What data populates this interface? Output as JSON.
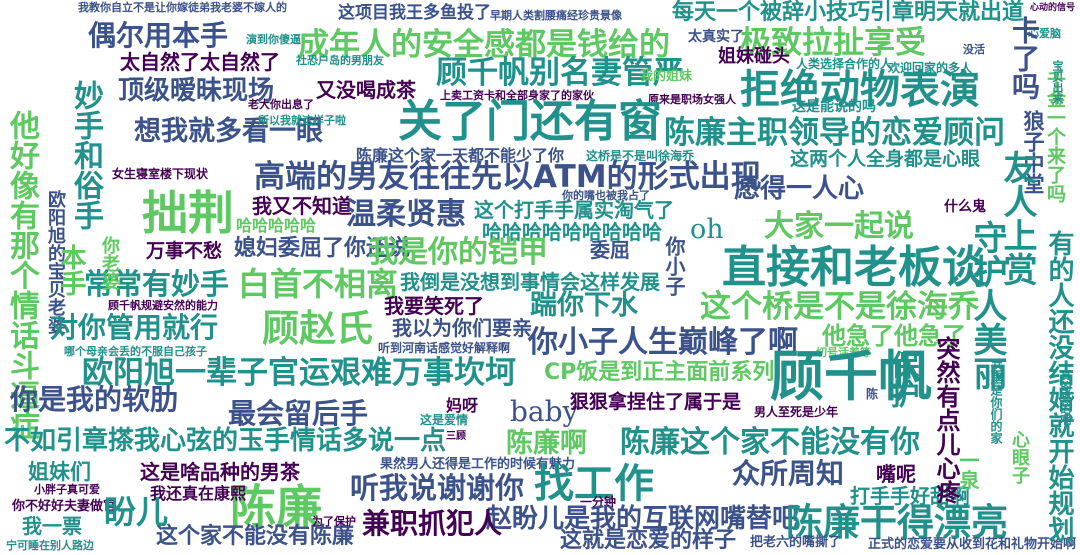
{
  "colors": {
    "background": "#ffffff",
    "palette": [
      "#440154",
      "#3b528b",
      "#21918c",
      "#5ec962",
      "#fde725"
    ]
  },
  "words": [
    {
      "id": "w01",
      "text": "我教你自立不是让你嫁徒弟我老婆不嫁人的",
      "color": "#3b528b"
    },
    {
      "id": "w02",
      "text": "这项目我王多鱼投了",
      "color": "#3b528b"
    },
    {
      "id": "w03",
      "text": "早期人类割腰痛经珍贵景像",
      "color": "#3b528b"
    },
    {
      "id": "w04",
      "text": "每天一个被辞小技巧引章明天就出道",
      "color": "#21918c"
    },
    {
      "id": "w05",
      "text": "心动的信号",
      "color": "#440154"
    },
    {
      "id": "w06",
      "text": "偶尔用本手",
      "color": "#3b528b"
    },
    {
      "id": "w07",
      "text": "演到你傻逼",
      "color": "#21918c"
    },
    {
      "id": "w08",
      "text": "成年人的安全感都是钱给的",
      "color": "#5ec962"
    },
    {
      "id": "w09",
      "text": "太真实了",
      "color": "#3b528b"
    },
    {
      "id": "w10",
      "text": "极致拉扯享受",
      "color": "#5ec962"
    },
    {
      "id": "w11",
      "text": "没活",
      "color": "#3b528b"
    },
    {
      "id": "w12",
      "text": "心爱脑",
      "color": "#21918c"
    },
    {
      "id": "w13",
      "text": "太自然了太自然了",
      "color": "#440154"
    },
    {
      "id": "w14",
      "text": "社恐户岛的男朋友",
      "color": "#21918c"
    },
    {
      "id": "w15",
      "text": "顾千帆别名妻管严",
      "color": "#21918c"
    },
    {
      "id": "w16",
      "text": "姐妹碰头",
      "color": "#440154"
    },
    {
      "id": "w17",
      "text": "人类选择合作的人",
      "color": "#21918c"
    },
    {
      "id": "w18",
      "text": "欢迎回家的多人",
      "color": "#21918c"
    },
    {
      "id": "w19",
      "text": "卡了吗",
      "color": "#3b528b"
    },
    {
      "id": "w20",
      "text": "顶级暧昧现场",
      "color": "#3b528b"
    },
    {
      "id": "w21",
      "text": "又没喝成茶",
      "color": "#440154"
    },
    {
      "id": "w22",
      "text": "我的姐妹",
      "color": "#5ec962"
    },
    {
      "id": "w23",
      "text": "拒绝动物表演",
      "color": "#21918c"
    },
    {
      "id": "w24",
      "text": "上卖工资卡和全部身家了的家伙",
      "color": "#440154"
    },
    {
      "id": "w25",
      "text": "老大你出息了",
      "color": "#440154"
    },
    {
      "id": "w26",
      "text": "原来是职场女强人",
      "color": "#440154"
    },
    {
      "id": "w27",
      "text": "这是能说的吗",
      "color": "#21918c"
    },
    {
      "id": "w28",
      "text": "想我就多看一眼",
      "color": "#3b528b"
    },
    {
      "id": "w29",
      "text": "关了门还有窗",
      "color": "#21918c"
    },
    {
      "id": "w30",
      "text": "陈廉主职领导的恋爱顾问",
      "color": "#21918c"
    },
    {
      "id": "w31",
      "text": "千金一个来了吗",
      "color": "#5ec962"
    },
    {
      "id": "w32",
      "text": "他好像有那个情话斗逼症",
      "color": "#5ec962"
    },
    {
      "id": "w33",
      "text": "所以我就这样子啦",
      "color": "#21918c"
    },
    {
      "id": "w34",
      "text": "陈廉这个家一天都不能少了你",
      "color": "#3b528b"
    },
    {
      "id": "w35",
      "text": "这桥是不是叫徐海乔",
      "color": "#21918c"
    },
    {
      "id": "w36",
      "text": "这两个人全身都是心眼",
      "color": "#21918c"
    },
    {
      "id": "w37",
      "text": "欧阳旭的宝贝老婆",
      "color": "#3b528b"
    },
    {
      "id": "w38",
      "text": "妙手和俗手",
      "color": "#21918c"
    },
    {
      "id": "w39",
      "text": "高端的男友往往先以ATM的形式出现",
      "color": "#3b528b"
    },
    {
      "id": "w40",
      "text": "愿得一人心",
      "color": "#3b528b"
    },
    {
      "id": "w41",
      "text": "狼子中堂",
      "color": "#3b528b"
    },
    {
      "id": "w42",
      "text": "女生寝室楼下现状",
      "color": "#440154"
    },
    {
      "id": "w43",
      "text": "拙荆",
      "color": "#5ec962"
    },
    {
      "id": "w44",
      "text": "我又不知道",
      "color": "#440154"
    },
    {
      "id": "w45",
      "text": "温柔贤惠",
      "color": "#3b528b"
    },
    {
      "id": "w46",
      "text": "这个打手手属实淘气了",
      "color": "#21918c"
    },
    {
      "id": "w47",
      "text": "你的嘴也被我占了",
      "color": "#3b528b"
    },
    {
      "id": "w48",
      "text": "什么鬼",
      "color": "#440154"
    },
    {
      "id": "w49",
      "text": "友人上赏",
      "color": "#21918c"
    },
    {
      "id": "w50",
      "text": "哈哈哈哈哈",
      "color": "#5ec962"
    },
    {
      "id": "w51",
      "text": "哈哈哈哈哈哈哈哈哈",
      "color": "#21918c"
    },
    {
      "id": "w52",
      "text": "oh",
      "color": "#21918c"
    },
    {
      "id": "w53",
      "text": "大家一起说",
      "color": "#5ec962"
    },
    {
      "id": "w54",
      "text": "万事不愁",
      "color": "#440154"
    },
    {
      "id": "w55",
      "text": "媳妇委屈了你还说",
      "color": "#3b528b"
    },
    {
      "id": "w56",
      "text": "我是你的铠甲",
      "color": "#5ec962"
    },
    {
      "id": "w57",
      "text": "委屈",
      "color": "#3b528b"
    },
    {
      "id": "w58",
      "text": "直接和老板谈",
      "color": "#21918c"
    },
    {
      "id": "w59",
      "text": "守护人美丽",
      "color": "#21918c"
    },
    {
      "id": "w60",
      "text": "常常有妙手",
      "color": "#21918c"
    },
    {
      "id": "w61",
      "text": "白首不相离",
      "color": "#5ec962"
    },
    {
      "id": "w62",
      "text": "我倒是没想到事情会这样发展",
      "color": "#21918c"
    },
    {
      "id": "w63",
      "text": "你小子",
      "color": "#3b528b"
    },
    {
      "id": "w64",
      "text": "顾千帆规避安然的能力",
      "color": "#440154"
    },
    {
      "id": "w65",
      "text": "这个桥是不是徐海乔",
      "color": "#5ec962"
    },
    {
      "id": "w66",
      "text": "对你管用就行",
      "color": "#21918c"
    },
    {
      "id": "w67",
      "text": "顾赵氏",
      "color": "#5ec962"
    },
    {
      "id": "w68",
      "text": "我要笑死了",
      "color": "#440154"
    },
    {
      "id": "w69",
      "text": "踹你下水",
      "color": "#21918c"
    },
    {
      "id": "w70",
      "text": "我以为你们要亲",
      "color": "#3b528b"
    },
    {
      "id": "w71",
      "text": "他急了他急了",
      "color": "#5ec962"
    },
    {
      "id": "w72",
      "text": "你小子人生巅峰了啊",
      "color": "#3b528b"
    },
    {
      "id": "w73",
      "text": "哪个母亲会丢的不服自己孩子",
      "color": "#21918c"
    },
    {
      "id": "w74",
      "text": "听到河南话感觉好解释啊",
      "color": "#3b528b"
    },
    {
      "id": "w75",
      "text": "切号活着等",
      "color": "#5ec962"
    },
    {
      "id": "w76",
      "text": "欧阳旭一辈子官运艰难万事坎坷",
      "color": "#21918c"
    },
    {
      "id": "w77",
      "text": "CP饭是到正主面前系列",
      "color": "#5ec962"
    },
    {
      "id": "w78",
      "text": "顾千帆",
      "color": "#21918c"
    },
    {
      "id": "w79",
      "text": "你是我的软肋",
      "color": "#3b528b"
    },
    {
      "id": "w80",
      "text": "最会留后手",
      "color": "#3b528b"
    },
    {
      "id": "w81",
      "text": "baby",
      "color": "#3b528b"
    },
    {
      "id": "w82",
      "text": "狠狠拿捏住了属于是",
      "color": "#440154"
    },
    {
      "id": "w83",
      "text": "男人至死是少年",
      "color": "#440154"
    },
    {
      "id": "w84",
      "text": "陈",
      "color": "#3b528b"
    },
    {
      "id": "w85",
      "text": "妈呀",
      "color": "#440154"
    },
    {
      "id": "w86",
      "text": "这是爱情",
      "color": "#21918c"
    },
    {
      "id": "w87",
      "text": "不如引章搽我心弦的玉手情话多说一点",
      "color": "#21918c"
    },
    {
      "id": "w88",
      "text": "陈廉啊",
      "color": "#5ec962"
    },
    {
      "id": "w89",
      "text": "陈廉这个家不能没有你",
      "color": "#21918c"
    },
    {
      "id": "w90",
      "text": "姐妹们",
      "color": "#21918c"
    },
    {
      "id": "w91",
      "text": "这是啥品种的男茶",
      "color": "#440154"
    },
    {
      "id": "w92",
      "text": "果然男人还得是工作的时候有魅力",
      "color": "#3b528b"
    },
    {
      "id": "w93",
      "text": "众所周知",
      "color": "#3b528b"
    },
    {
      "id": "w94",
      "text": "嘴呢",
      "color": "#440154"
    },
    {
      "id": "w95",
      "text": "陈廉",
      "color": "#5ec962"
    },
    {
      "id": "w96",
      "text": "听我说谢谢你",
      "color": "#3b528b"
    },
    {
      "id": "w97",
      "text": "找工作",
      "color": "#21918c"
    },
    {
      "id": "w98",
      "text": "打手手好甜啊",
      "color": "#21918c"
    },
    {
      "id": "w99",
      "text": "我还真在康熙",
      "color": "#440154"
    },
    {
      "id": "w100",
      "text": "一分钟",
      "color": "#440154"
    },
    {
      "id": "w101",
      "text": "你不好好夫妻做官",
      "color": "#440154"
    },
    {
      "id": "w102",
      "text": "小胖子真可爱",
      "color": "#440154"
    },
    {
      "id": "w103",
      "text": "这个家不能没有陈廉",
      "color": "#3b528b"
    },
    {
      "id": "w104",
      "text": "赵盼儿是我的互联网嘴替吧",
      "color": "#3b528b"
    },
    {
      "id": "w105",
      "text": "陈廉干得漂亮",
      "color": "#21918c"
    },
    {
      "id": "w106",
      "text": "我一票",
      "color": "#21918c"
    },
    {
      "id": "w107",
      "text": "盼儿",
      "color": "#21918c"
    },
    {
      "id": "w108",
      "text": "兼职抓犯人",
      "color": "#440154"
    },
    {
      "id": "w109",
      "text": "这就是恋爱的样子",
      "color": "#3b528b"
    },
    {
      "id": "w110",
      "text": "把老六的嘴撕了",
      "color": "#3b528b"
    },
    {
      "id": "w111",
      "text": "正式的恋爱要从收到花和礼物开始啊",
      "color": "#3b528b"
    },
    {
      "id": "w112",
      "text": "有的人还没结婚就开始规划",
      "color": "#21918c"
    },
    {
      "id": "w113",
      "text": "宝贝出来",
      "color": "#21918c"
    },
    {
      "id": "w114",
      "text": "突然有点儿心疼",
      "color": "#440154"
    },
    {
      "id": "w115",
      "text": "为了保护",
      "color": "#440154"
    },
    {
      "id": "w116",
      "text": "宁可睡在别人路边",
      "color": "#21918c"
    },
    {
      "id": "w117",
      "text": "这里是你们的家",
      "color": "#21918c"
    },
    {
      "id": "w118",
      "text": "真的来的啊",
      "color": "#21918c"
    },
    {
      "id": "w119",
      "text": "本手",
      "color": "#5ec962"
    },
    {
      "id": "w120",
      "text": "保护",
      "color": "#21918c"
    },
    {
      "id": "w121",
      "text": "你老婆",
      "color": "#5ec962"
    },
    {
      "id": "w122",
      "text": "一泉",
      "color": "#5ec962"
    },
    {
      "id": "w123",
      "text": "心眼子",
      "color": "#5ec962"
    },
    {
      "id": "w124",
      "text": "三顾",
      "color": "#440154"
    }
  ]
}
